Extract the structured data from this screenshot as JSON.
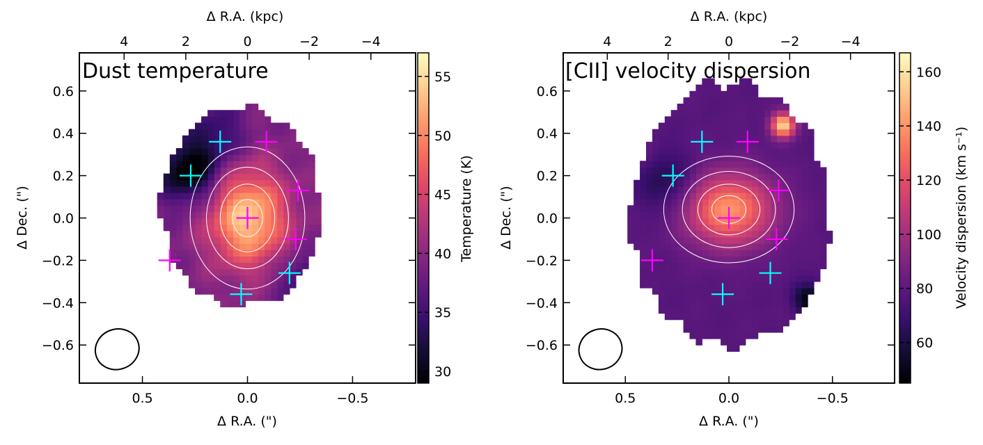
{
  "chart_data": [
    {
      "type": "heatmap",
      "title": "Dust temperature",
      "xlabel": "Δ R.A. (\")",
      "ylabel": "Δ Dec. (\")",
      "top_xlabel": "Δ R.A. (kpc)",
      "xlim": [
        0.8,
        -0.8
      ],
      "ylim": [
        -0.78,
        0.78
      ],
      "top_xlim": [
        5.45,
        -5.45
      ],
      "xticks": [
        0.5,
        0.0,
        -0.5
      ],
      "xtick_labels": [
        "0.5",
        "0.0",
        "−0.5"
      ],
      "yticks": [
        0.6,
        0.4,
        0.2,
        0.0,
        -0.2,
        -0.4,
        -0.6
      ],
      "ytick_labels": [
        "0.6",
        "0.4",
        "0.2",
        "0.0",
        "−0.2",
        "−0.4",
        "−0.6"
      ],
      "top_xticks": [
        4,
        2,
        0,
        -2,
        -4
      ],
      "top_xtick_labels": [
        "4",
        "2",
        "0",
        "−2",
        "−4"
      ],
      "colorbar": {
        "label": "Temperature (K)",
        "range": [
          29,
          57
        ],
        "ticks": [
          30,
          35,
          40,
          45,
          50,
          55
        ],
        "tick_labels": [
          "30",
          "35",
          "40",
          "45",
          "50",
          "55"
        ],
        "colormap": "magma"
      },
      "field": {
        "base": 39,
        "peak": {
          "x": 0.0,
          "y": 0.0,
          "amp": 15,
          "sx": 0.13,
          "sy": 0.16
        },
        "cold": [
          {
            "x": 0.28,
            "y": 0.22,
            "amp": -11,
            "s": 0.1
          },
          {
            "x": 0.15,
            "y": 0.4,
            "amp": -5,
            "s": 0.1
          },
          {
            "x": -0.25,
            "y": -0.28,
            "amp": -5,
            "s": 0.08
          }
        ],
        "footprint": {
          "cx": 0.03,
          "cy": 0.05,
          "rx": 0.38,
          "ry": 0.47
        }
      },
      "markers_cyan": [
        {
          "x": 0.13,
          "y": 0.36
        },
        {
          "x": 0.27,
          "y": 0.2
        },
        {
          "x": 0.03,
          "y": -0.36
        },
        {
          "x": -0.2,
          "y": -0.26
        }
      ],
      "markers_magenta": [
        {
          "x": -0.09,
          "y": 0.36
        },
        {
          "x": 0.0,
          "y": 0.0
        },
        {
          "x": -0.24,
          "y": 0.13
        },
        {
          "x": -0.23,
          "y": -0.1
        },
        {
          "x": 0.37,
          "y": -0.2
        }
      ],
      "beam": {
        "x": 0.62,
        "y": -0.62,
        "bmaj": 0.105,
        "bmin": 0.095
      }
    },
    {
      "type": "heatmap",
      "title": "[CII] velocity dispersion",
      "xlabel": "Δ R.A. (\")",
      "ylabel": "Δ Dec. (\")",
      "top_xlabel": "Δ R.A. (kpc)",
      "xlim": [
        0.8,
        -0.8
      ],
      "ylim": [
        -0.78,
        0.78
      ],
      "top_xlim": [
        5.45,
        -5.45
      ],
      "xticks": [
        0.5,
        0.0,
        -0.5
      ],
      "xtick_labels": [
        "0.5",
        "0.0",
        "−0.5"
      ],
      "yticks": [
        0.6,
        0.4,
        0.2,
        0.0,
        -0.2,
        -0.4,
        -0.6
      ],
      "ytick_labels": [
        "0.6",
        "0.4",
        "0.2",
        "0.0",
        "−0.2",
        "−0.4",
        "−0.6"
      ],
      "top_xticks": [
        4,
        2,
        0,
        -2,
        -4
      ],
      "top_xtick_labels": [
        "4",
        "2",
        "0",
        "−2",
        "−4"
      ],
      "colorbar": {
        "label": "Velocity dispersion (km s⁻¹)",
        "range": [
          45,
          167
        ],
        "ticks": [
          60,
          80,
          100,
          120,
          140,
          160
        ],
        "tick_labels": [
          "60",
          "80",
          "100",
          "120",
          "140",
          "160"
        ],
        "colormap": "magma"
      },
      "field": {
        "base": 78,
        "peak": {
          "x": 0.0,
          "y": 0.04,
          "amp": 62,
          "sx": 0.15,
          "sy": 0.12
        },
        "hot": [
          {
            "x": -0.26,
            "y": 0.44,
            "amp": 80,
            "s": 0.04
          },
          {
            "x": 0.47,
            "y": 0.33,
            "amp": 25,
            "s": 0.05
          }
        ],
        "cold": [
          {
            "x": 0.3,
            "y": 0.17,
            "amp": -18,
            "s": 0.1
          },
          {
            "x": -0.38,
            "y": -0.38,
            "amp": -30,
            "s": 0.05
          }
        ],
        "footprint": {
          "cx": 0.0,
          "cy": 0.02,
          "rx": 0.48,
          "ry": 0.62
        }
      },
      "markers_cyan": [
        {
          "x": 0.13,
          "y": 0.36
        },
        {
          "x": 0.27,
          "y": 0.2
        },
        {
          "x": 0.03,
          "y": -0.36
        },
        {
          "x": -0.2,
          "y": -0.26
        }
      ],
      "markers_magenta": [
        {
          "x": -0.09,
          "y": 0.36
        },
        {
          "x": 0.0,
          "y": 0.0
        },
        {
          "x": -0.24,
          "y": 0.13
        },
        {
          "x": -0.23,
          "y": -0.1
        },
        {
          "x": 0.37,
          "y": -0.2
        }
      ],
      "beam": {
        "x": 0.62,
        "y": -0.62,
        "bmaj": 0.105,
        "bmin": 0.095
      }
    }
  ],
  "colors": {
    "cyan_marker": "#00ffff",
    "magenta_marker": "#ff00ff",
    "contour": "#ffffff",
    "axis": "#000000"
  }
}
